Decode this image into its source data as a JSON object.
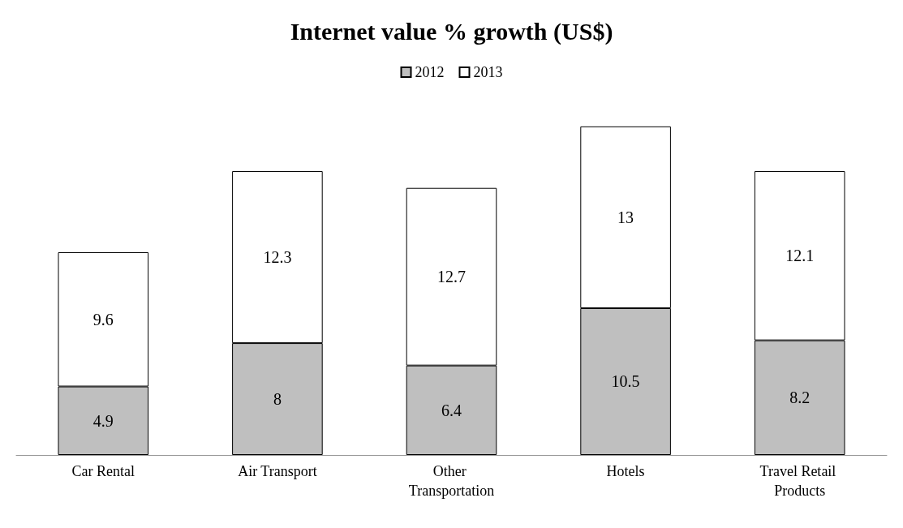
{
  "chart_data": {
    "type": "bar",
    "title": "Internet value % growth (US$)",
    "categories": [
      "Car Rental",
      "Air Transport",
      "Other Transportation",
      "Hotels",
      "Travel Retail Products"
    ],
    "stacked": true,
    "data_labels": true,
    "legend": "top",
    "series": [
      {
        "name": "2012",
        "color": "#bfbfbf",
        "values": [
          4.9,
          8,
          6.4,
          10.5,
          8.2
        ]
      },
      {
        "name": "2013",
        "color": "#ffffff",
        "values": [
          9.6,
          12.3,
          12.7,
          13,
          12.1
        ]
      }
    ]
  }
}
